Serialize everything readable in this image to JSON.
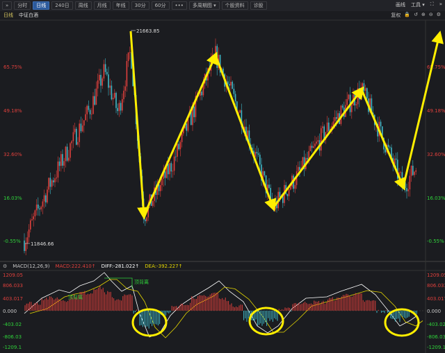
{
  "toolbar": {
    "expand": "»",
    "buttons": [
      "分时",
      "日线",
      "240日",
      "周线",
      "月线",
      "年线",
      "30分",
      "60分",
      "•••",
      "多周期图 ▾",
      "个股资料",
      "诊股"
    ],
    "active": 1,
    "right": {
      "draw": "画线",
      "tools": "工具 ▾",
      "fullscreen": "⛶",
      "more": "»"
    }
  },
  "sub": {
    "period": "日线",
    "name": "中证白酒",
    "right": [
      "复权",
      "🔒",
      "↺",
      "⊕",
      "⊖",
      "⚙"
    ]
  },
  "price_axis": {
    "labels": [
      "65.75%",
      "49.18%",
      "32.60%",
      "16.03%",
      "-0.55%"
    ]
  },
  "price_marks": {
    "high": "21663.85",
    "low": "11846.66"
  },
  "zigzag_pivots_pct": [
    72,
    9,
    70,
    12,
    57,
    20,
    75
  ],
  "macd": {
    "title": "MACD(12,26,9)",
    "macd": "MACD:222.410↑",
    "diff": "DIFF:-281.022↑",
    "dea": "DEA:-392.227↑",
    "axis": [
      "1209.05",
      "806.033",
      "403.017",
      "0.000",
      "-403.02",
      "-806.03",
      "-1209.1"
    ],
    "annotations": [
      "顶背离",
      "顶背离"
    ]
  },
  "colors": {
    "up": "#e0403c",
    "down": "#3fb8c8",
    "arrow": "#ffee00",
    "diff": "#ffffff",
    "dea": "#e6d800",
    "pos": "#e0403c",
    "neg": "#2fd33a"
  }
}
